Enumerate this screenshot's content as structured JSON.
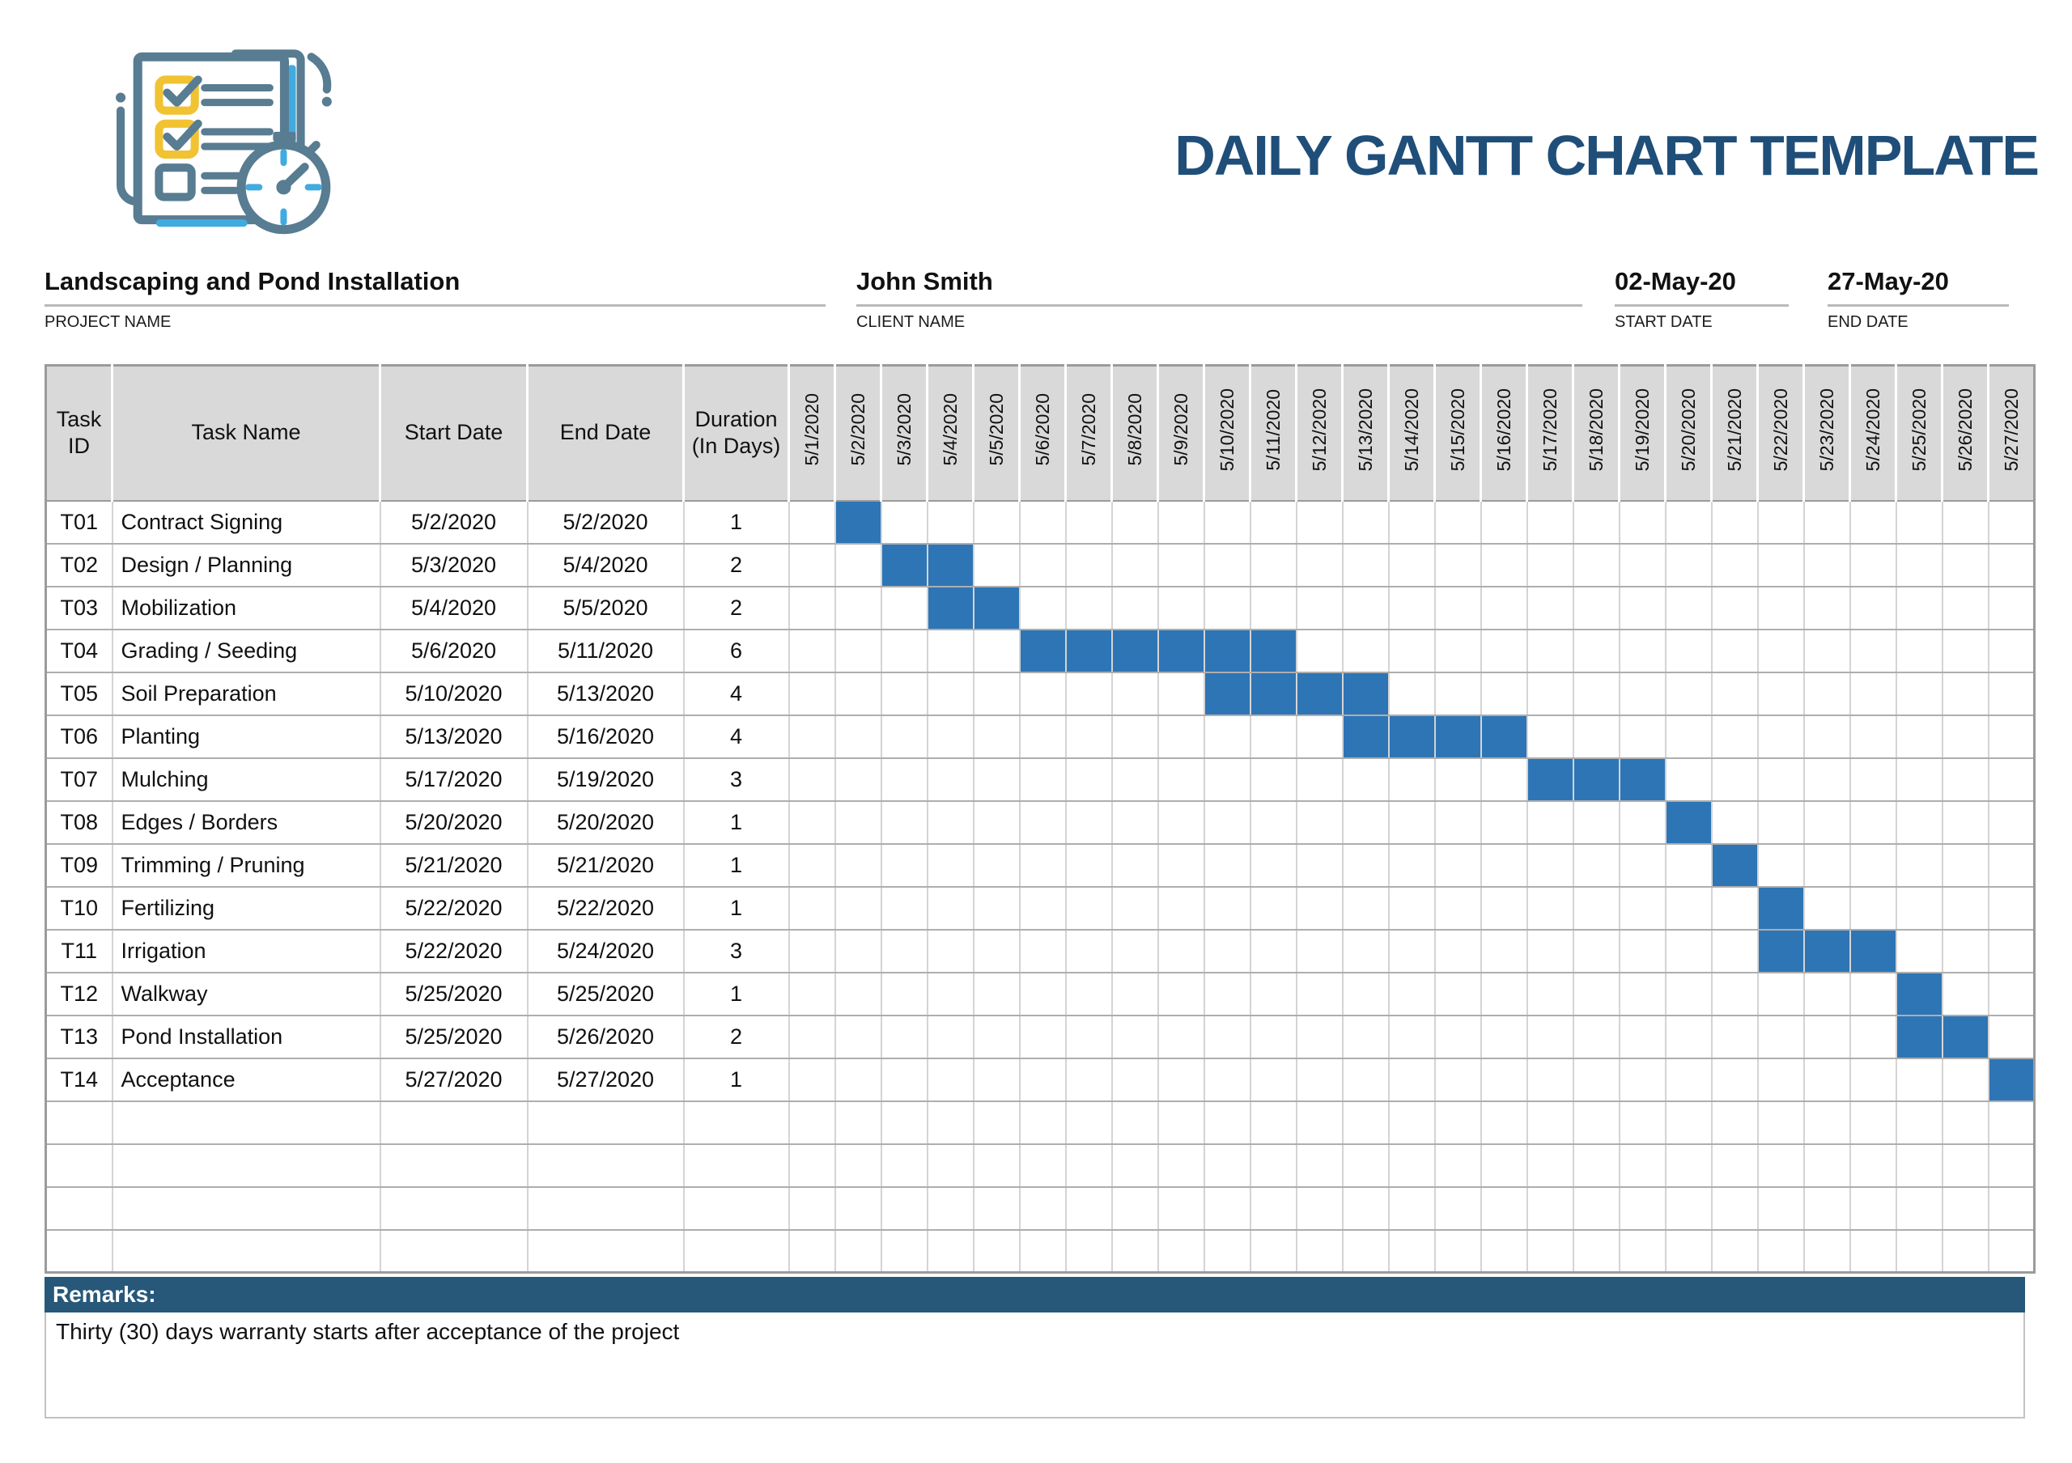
{
  "title": "DAILY GANTT CHART TEMPLATE",
  "logo": {
    "icon": "checklist-stopwatch-icon"
  },
  "info": {
    "project": {
      "value": "Landscaping and Pond Installation",
      "label": "PROJECT NAME"
    },
    "client": {
      "value": "John Smith",
      "label": "CLIENT NAME"
    },
    "start_date": {
      "value": "02-May-20",
      "label": "START DATE"
    },
    "end_date": {
      "value": "27-May-20",
      "label": "END DATE"
    }
  },
  "table": {
    "columns": [
      "Task ID",
      "Task Name",
      "Start Date",
      "End Date",
      "Duration (In Days)"
    ],
    "date_columns": [
      "5/1/2020",
      "5/2/2020",
      "5/3/2020",
      "5/4/2020",
      "5/5/2020",
      "5/6/2020",
      "5/7/2020",
      "5/8/2020",
      "5/9/2020",
      "5/10/2020",
      "5/11/2020",
      "5/12/2020",
      "5/13/2020",
      "5/14/2020",
      "5/15/2020",
      "5/16/2020",
      "5/17/2020",
      "5/18/2020",
      "5/19/2020",
      "5/20/2020",
      "5/21/2020",
      "5/22/2020",
      "5/23/2020",
      "5/24/2020",
      "5/25/2020",
      "5/26/2020",
      "5/27/2020"
    ],
    "empty_rows": 4
  },
  "remarks": {
    "label": "Remarks:",
    "text": "Thirty (30) days warranty starts after acceptance of the project"
  },
  "colors": {
    "task_bar": "#2E75B6",
    "title_text": "#1F4E79",
    "remarks_bar_bg": "#275879",
    "header_cell_bg": "#D9D9D9",
    "grid_line": "#bdbdbd",
    "logo_slate": "#587C91",
    "logo_yellow": "#F1C232",
    "logo_blue": "#41ABE0"
  },
  "chart_data": {
    "type": "bar",
    "variant": "gantt-daily",
    "title": "DAILY GANTT CHART TEMPLATE",
    "x_axis": {
      "unit": "day",
      "start": "5/1/2020",
      "end": "5/27/2020",
      "step_days": 1,
      "num_columns": 27
    },
    "tasks": [
      {
        "id": "T01",
        "name": "Contract Signing",
        "start": "5/2/2020",
        "end": "5/2/2020",
        "duration_days": 1,
        "bar_start_day": 2,
        "bar_end_day": 2
      },
      {
        "id": "T02",
        "name": "Design / Planning",
        "start": "5/3/2020",
        "end": "5/4/2020",
        "duration_days": 2,
        "bar_start_day": 3,
        "bar_end_day": 4
      },
      {
        "id": "T03",
        "name": "Mobilization",
        "start": "5/4/2020",
        "end": "5/5/2020",
        "duration_days": 2,
        "bar_start_day": 4,
        "bar_end_day": 5
      },
      {
        "id": "T04",
        "name": "Grading / Seeding",
        "start": "5/6/2020",
        "end": "5/11/2020",
        "duration_days": 6,
        "bar_start_day": 6,
        "bar_end_day": 11
      },
      {
        "id": "T05",
        "name": "Soil Preparation",
        "start": "5/10/2020",
        "end": "5/13/2020",
        "duration_days": 4,
        "bar_start_day": 10,
        "bar_end_day": 13
      },
      {
        "id": "T06",
        "name": "Planting",
        "start": "5/13/2020",
        "end": "5/16/2020",
        "duration_days": 4,
        "bar_start_day": 13,
        "bar_end_day": 16
      },
      {
        "id": "T07",
        "name": "Mulching",
        "start": "5/17/2020",
        "end": "5/19/2020",
        "duration_days": 3,
        "bar_start_day": 17,
        "bar_end_day": 19
      },
      {
        "id": "T08",
        "name": "Edges / Borders",
        "start": "5/20/2020",
        "end": "5/20/2020",
        "duration_days": 1,
        "bar_start_day": 20,
        "bar_end_day": 20
      },
      {
        "id": "T09",
        "name": "Trimming / Pruning",
        "start": "5/21/2020",
        "end": "5/21/2020",
        "duration_days": 1,
        "bar_start_day": 21,
        "bar_end_day": 21
      },
      {
        "id": "T10",
        "name": "Fertilizing",
        "start": "5/22/2020",
        "end": "5/22/2020",
        "duration_days": 1,
        "bar_start_day": 22,
        "bar_end_day": 22
      },
      {
        "id": "T11",
        "name": "Irrigation",
        "start": "5/22/2020",
        "end": "5/24/2020",
        "duration_days": 3,
        "bar_start_day": 22,
        "bar_end_day": 24
      },
      {
        "id": "T12",
        "name": "Walkway",
        "start": "5/25/2020",
        "end": "5/25/2020",
        "duration_days": 1,
        "bar_start_day": 25,
        "bar_end_day": 25
      },
      {
        "id": "T13",
        "name": "Pond Installation",
        "start": "5/25/2020",
        "end": "5/26/2020",
        "duration_days": 2,
        "bar_start_day": 25,
        "bar_end_day": 26
      },
      {
        "id": "T14",
        "name": "Acceptance",
        "start": "5/27/2020",
        "end": "5/27/2020",
        "duration_days": 1,
        "bar_start_day": 27,
        "bar_end_day": 27
      }
    ]
  }
}
